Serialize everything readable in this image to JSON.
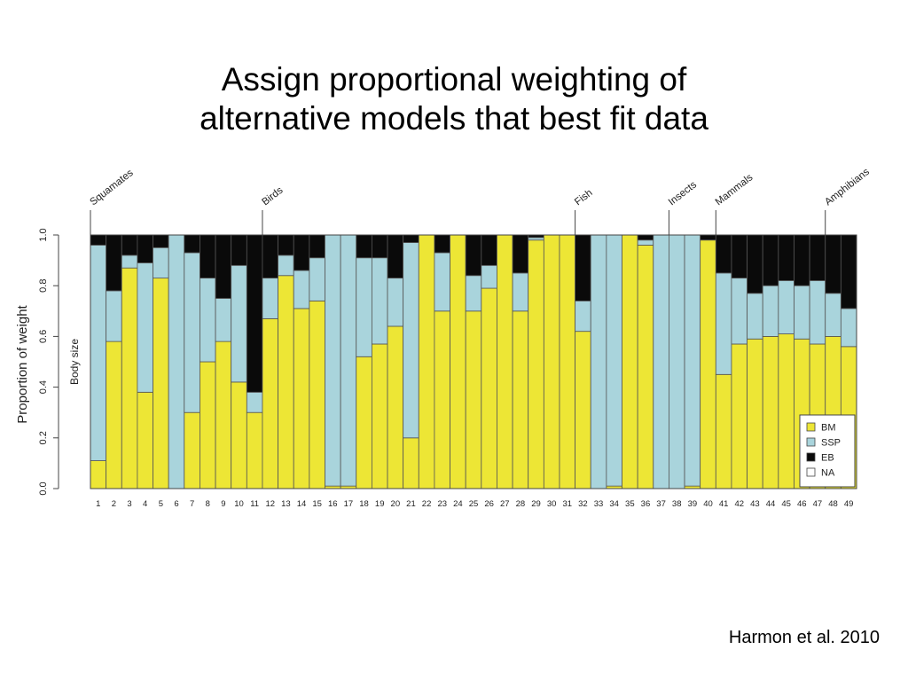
{
  "slide": {
    "title_line1": "Assign proportional weighting of",
    "title_line2": "alternative models that best fit data",
    "citation": "Harmon et al. 2010"
  },
  "chart_data": {
    "type": "bar",
    "stacked": true,
    "ylabel": "Proportion of weight",
    "side_label": "Body size",
    "ylim": [
      0,
      1
    ],
    "yticks": [
      "0.0",
      "0.2",
      "0.4",
      "0.6",
      "0.8",
      "1.0"
    ],
    "ytick_values": [
      0,
      0.2,
      0.4,
      0.6,
      0.8,
      1.0
    ],
    "categories": [
      "1",
      "2",
      "3",
      "4",
      "5",
      "6",
      "7",
      "8",
      "9",
      "10",
      "11",
      "12",
      "13",
      "14",
      "15",
      "16",
      "17",
      "18",
      "19",
      "20",
      "21",
      "22",
      "23",
      "24",
      "25",
      "26",
      "27",
      "28",
      "29",
      "30",
      "31",
      "32",
      "33",
      "34",
      "35",
      "36",
      "37",
      "38",
      "39",
      "40",
      "41",
      "42",
      "43",
      "44",
      "45",
      "46",
      "47",
      "48",
      "49"
    ],
    "groups": [
      {
        "label": "Squamates",
        "start": 1
      },
      {
        "label": "Birds",
        "start": 12
      },
      {
        "label": "Fish",
        "start": 32
      },
      {
        "label": "Insects",
        "start": 38
      },
      {
        "label": "Mammals",
        "start": 41
      },
      {
        "label": "Amphibians",
        "start": 48
      }
    ],
    "series": [
      {
        "name": "BM",
        "color": "#ede635",
        "values": [
          0.11,
          0.58,
          0.87,
          0.38,
          0.83,
          0.0,
          0.3,
          0.5,
          0.58,
          0.42,
          0.3,
          0.67,
          0.84,
          0.71,
          0.74,
          0.01,
          0.01,
          0.52,
          0.57,
          0.64,
          0.2,
          1.0,
          0.7,
          1.0,
          0.7,
          0.79,
          1.0,
          0.7,
          0.98,
          1.0,
          1.0,
          0.62,
          0.0,
          0.01,
          1.0,
          0.96,
          0.0,
          0.0,
          0.01,
          0.98,
          0.45,
          0.57,
          0.59,
          0.6,
          0.61,
          0.59,
          0.57,
          0.6,
          0.56
        ]
      },
      {
        "name": "SSP",
        "color": "#a9d4dc",
        "values": [
          0.85,
          0.2,
          0.05,
          0.51,
          0.12,
          1.0,
          0.63,
          0.33,
          0.17,
          0.46,
          0.08,
          0.16,
          0.08,
          0.15,
          0.17,
          0.99,
          0.99,
          0.39,
          0.34,
          0.19,
          0.77,
          0.0,
          0.23,
          0.0,
          0.14,
          0.09,
          0.0,
          0.15,
          0.01,
          0.0,
          0.0,
          0.12,
          1.0,
          0.99,
          0.0,
          0.02,
          1.0,
          1.0,
          0.99,
          0.0,
          0.4,
          0.26,
          0.18,
          0.2,
          0.21,
          0.21,
          0.25,
          0.17,
          0.15
        ]
      },
      {
        "name": "EB",
        "color": "#0a0a0a",
        "values": [
          0.04,
          0.22,
          0.08,
          0.11,
          0.05,
          0.0,
          0.07,
          0.17,
          0.25,
          0.12,
          0.62,
          0.17,
          0.08,
          0.14,
          0.09,
          0.0,
          0.0,
          0.09,
          0.09,
          0.17,
          0.03,
          0.0,
          0.07,
          0.0,
          0.16,
          0.12,
          0.0,
          0.15,
          0.01,
          0.0,
          0.0,
          0.26,
          0.0,
          0.0,
          0.0,
          0.02,
          0.0,
          0.0,
          0.0,
          0.02,
          0.15,
          0.17,
          0.23,
          0.2,
          0.18,
          0.2,
          0.18,
          0.23,
          0.29
        ]
      },
      {
        "name": "NA",
        "color": "#ffffff",
        "values": [
          0,
          0,
          0,
          0,
          0,
          0,
          0,
          0,
          0,
          0,
          0,
          0,
          0,
          0,
          0,
          0,
          0,
          0,
          0,
          0,
          0,
          0,
          0,
          0,
          0,
          0,
          0,
          0,
          0,
          0,
          0,
          0,
          0,
          0,
          0,
          0,
          0,
          0,
          0,
          0,
          0,
          0,
          0,
          0,
          0,
          0,
          0,
          0,
          0
        ]
      }
    ],
    "legend_position": "bottom-right",
    "grid": false
  }
}
